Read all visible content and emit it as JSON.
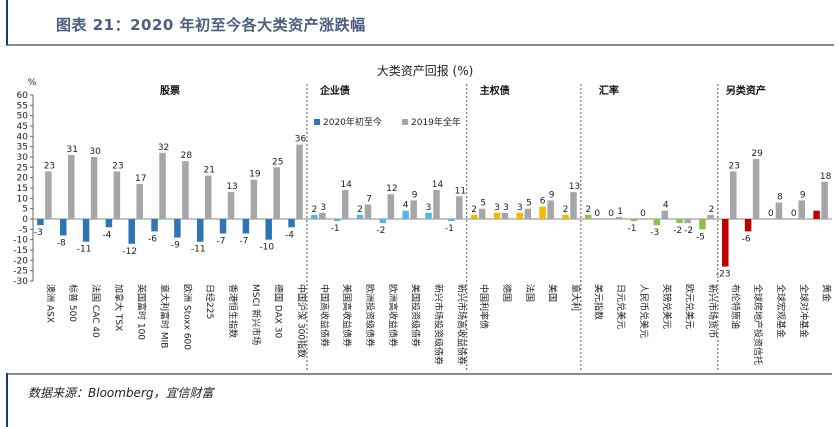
{
  "header": {
    "title": "图表 21：2020 年初至今各大类资产涨跌幅"
  },
  "source": "数据来源：Bloomberg，宜信财富",
  "chart_data": {
    "type": "bar",
    "title": "大类资产回报 (%)",
    "ylabel": "%",
    "ylim": [
      -30,
      60
    ],
    "yticks": [
      60,
      55,
      50,
      45,
      40,
      35,
      30,
      25,
      20,
      15,
      10,
      5,
      0,
      -5,
      -10,
      -15,
      -20,
      -25,
      -30
    ],
    "categories": [
      "澳洲 ASX",
      "标普 500",
      "法国 CAC 40",
      "加拿大 TSX",
      "英国富时 100",
      "意大利富时 MIB",
      "欧洲 Stoxx 600",
      "日经225",
      "香港恒生指数",
      "MSCI 新兴市场",
      "德国 DAX 30",
      "中国沪深 300指数",
      "中国高收益债券",
      "美国高收益债券",
      "欧洲投资级债券",
      "欧洲高收益债券",
      "美国投资级债券",
      "新兴市场投资级债券",
      "新兴市场高收益债券",
      "中国利率债",
      "德国",
      "法国",
      "美国",
      "意大利",
      "美元指数",
      "日元兑美元",
      "人民币兑美元",
      "英镑兑美元",
      "欧元兑美元",
      "新兴市场货币",
      "布伦特原油",
      "全球房地产投资信托",
      "全球宏观基金",
      "全球对冲基金",
      "黄金"
    ],
    "series": [
      {
        "name": "2020年初至今",
        "values": [
          -3,
          -8,
          -11,
          -4,
          -12,
          -6,
          -9,
          -11,
          -7,
          -7,
          -10,
          -4,
          2,
          -1,
          2,
          -2,
          4,
          3,
          -1,
          2,
          3,
          3,
          6,
          2,
          2,
          0,
          -1,
          -3,
          -2,
          -5,
          -23,
          -6,
          0,
          0,
          4
        ]
      },
      {
        "name": "2019年全年",
        "values": [
          23,
          31,
          30,
          23,
          17,
          32,
          28,
          21,
          13,
          19,
          25,
          36,
          3,
          14,
          7,
          12,
          9,
          14,
          11,
          5,
          3,
          5,
          9,
          13,
          0,
          1,
          0,
          4,
          -2,
          2,
          23,
          29,
          8,
          9,
          18
        ]
      }
    ],
    "value_labels": {
      "series0": [
        "-3",
        "-8",
        "-11",
        "-4",
        "-12",
        "-6",
        "-9",
        "-11",
        "-7",
        "-7",
        "-10",
        "-4",
        "2",
        "-1",
        "2",
        "-2",
        "4",
        "3",
        "-1",
        "2",
        "3",
        "3",
        "6",
        "2",
        "2",
        "0",
        "-1",
        "-3",
        "-2",
        "-5",
        "-23",
        "-6",
        "0",
        "0",
        ""
      ],
      "series1": [
        "23",
        "31",
        "30",
        "23",
        "17",
        "32",
        "28",
        "21",
        "13",
        "19",
        "25",
        "36",
        "3",
        "14",
        "7",
        "12",
        "9",
        "14",
        "11",
        "5",
        "3",
        "5",
        "9",
        "13",
        "0",
        "1",
        "0",
        "4",
        "-2",
        "2",
        "23",
        "29",
        "8",
        "9",
        "18"
      ]
    },
    "groups": [
      {
        "label": "股票",
        "start": 0,
        "end": 11
      },
      {
        "label": "企业债",
        "start": 12,
        "end": 18
      },
      {
        "label": "主权债",
        "start": 19,
        "end": 23
      },
      {
        "label": "汇率",
        "start": 24,
        "end": 29
      },
      {
        "label": "另类资产",
        "start": 30,
        "end": 34
      }
    ],
    "colors": {
      "series1": "#a6a6a6",
      "equity": "#2e75b6",
      "credit": "#5ab4e5",
      "sovereign": "#f5b800",
      "fx": "#8cc152",
      "alt": "#c00000"
    },
    "legend_position": "top-center",
    "grid": false
  }
}
